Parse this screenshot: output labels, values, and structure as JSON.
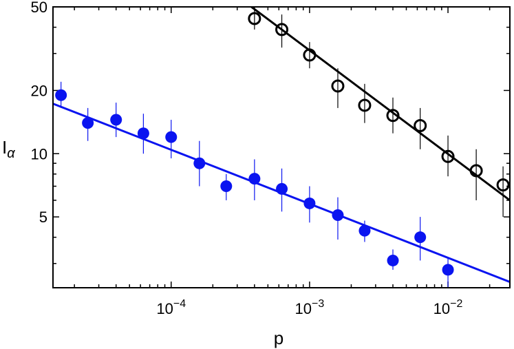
{
  "chart_data": {
    "type": "scatter",
    "title": "",
    "xlabel": "p",
    "ylabel": "I",
    "ylabel_subscript": "α",
    "xscale": "log",
    "yscale": "log",
    "xlim": [
      1.4e-05,
      0.028
    ],
    "ylim": [
      2.3,
      50
    ],
    "xticks": [
      0.0001,
      0.001,
      0.01
    ],
    "xtick_base": "10",
    "xtick_exponents": [
      "−4",
      "−3",
      "−2"
    ],
    "yticks": [
      5,
      10,
      20,
      50
    ],
    "ytick_labels": [
      "5",
      "10",
      "20",
      "50"
    ],
    "grid": false,
    "series": [
      {
        "marker": "filled-circle",
        "color": "#0a14f0",
        "points": [
          {
            "x": 1.6e-05,
            "y": 19.0,
            "ylo": 16.5,
            "yhi": 22.0
          },
          {
            "x": 2.5e-05,
            "y": 14.0,
            "ylo": 11.5,
            "yhi": 16.5
          },
          {
            "x": 4e-05,
            "y": 14.5,
            "ylo": 12.0,
            "yhi": 17.5
          },
          {
            "x": 6.3e-05,
            "y": 12.5,
            "ylo": 10.0,
            "yhi": 15.5
          },
          {
            "x": 0.0001,
            "y": 12.0,
            "ylo": 9.5,
            "yhi": 14.5
          },
          {
            "x": 0.00016,
            "y": 9.0,
            "ylo": 7.0,
            "yhi": 11.5
          },
          {
            "x": 0.00025,
            "y": 7.0,
            "ylo": 6.0,
            "yhi": 8.0
          },
          {
            "x": 0.0004,
            "y": 7.6,
            "ylo": 6.0,
            "yhi": 9.4
          },
          {
            "x": 0.00063,
            "y": 6.8,
            "ylo": 5.3,
            "yhi": 8.5
          },
          {
            "x": 0.001,
            "y": 5.8,
            "ylo": 4.7,
            "yhi": 7.0
          },
          {
            "x": 0.0016,
            "y": 5.1,
            "ylo": 3.9,
            "yhi": 6.2
          },
          {
            "x": 0.0025,
            "y": 4.3,
            "ylo": 3.8,
            "yhi": 4.8
          },
          {
            "x": 0.004,
            "y": 3.1,
            "ylo": 2.8,
            "yhi": 3.5
          },
          {
            "x": 0.0063,
            "y": 4.0,
            "ylo": 3.1,
            "yhi": 5.0
          },
          {
            "x": 0.01,
            "y": 2.8,
            "ylo": 2.3,
            "yhi": 3.2
          }
        ],
        "fit": {
          "x": [
            1.4e-05,
            0.028
          ],
          "y": [
            17.3,
            2.45
          ]
        }
      },
      {
        "marker": "open-circle",
        "color": "#000000",
        "points": [
          {
            "x": 0.0004,
            "y": 44.0,
            "ylo": 39.0,
            "yhi": 49.0
          },
          {
            "x": 0.00063,
            "y": 39.0,
            "ylo": 32.0,
            "yhi": 46.0
          },
          {
            "x": 0.001,
            "y": 29.5,
            "ylo": 25.5,
            "yhi": 34.0
          },
          {
            "x": 0.0016,
            "y": 21.0,
            "ylo": 16.5,
            "yhi": 25.5
          },
          {
            "x": 0.0025,
            "y": 17.0,
            "ylo": 14.0,
            "yhi": 21.5
          },
          {
            "x": 0.004,
            "y": 15.2,
            "ylo": 12.5,
            "yhi": 18.5
          },
          {
            "x": 0.0063,
            "y": 13.6,
            "ylo": 10.5,
            "yhi": 16.5
          },
          {
            "x": 0.01,
            "y": 9.7,
            "ylo": 7.8,
            "yhi": 12.2
          },
          {
            "x": 0.016,
            "y": 8.3,
            "ylo": 6.0,
            "yhi": 10.5
          },
          {
            "x": 0.025,
            "y": 7.1,
            "ylo": 5.0,
            "yhi": 8.7
          }
        ],
        "fit": {
          "x": [
            0.00038,
            0.028
          ],
          "y": [
            50,
            6.0
          ]
        }
      }
    ]
  }
}
